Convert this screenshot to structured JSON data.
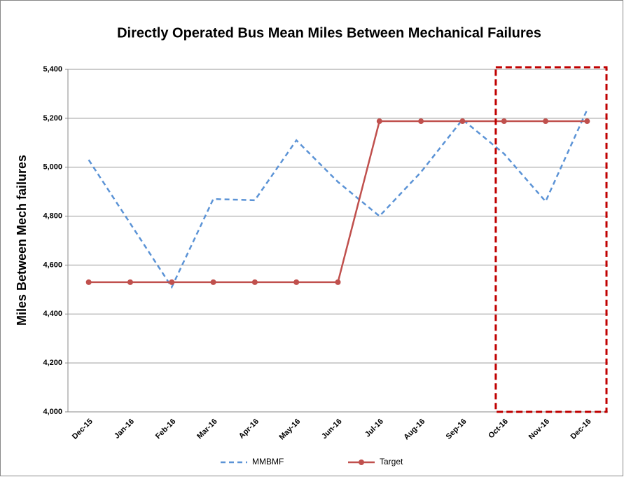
{
  "chart_data": {
    "type": "line",
    "title": "Directly Operated Bus Mean Miles Between Mechanical Failures",
    "y_label": "Miles Between Mech failures",
    "categories": [
      "Dec-15",
      "Jan-16",
      "Feb-16",
      "Mar-16",
      "Apr-16",
      "May-16",
      "Jun-16",
      "Jul-16",
      "Aug-16",
      "Sep-16",
      "Oct-16",
      "Nov-16",
      "Dec-16"
    ],
    "series": [
      {
        "name": "MMBMF",
        "color": "#5b93d6",
        "dashed": true,
        "marker": false,
        "values": [
          5030,
          4770,
          4510,
          4870,
          4865,
          5110,
          4940,
          4800,
          4980,
          5195,
          5055,
          4860,
          5235
        ]
      },
      {
        "name": "Target",
        "color": "#c0504d",
        "dashed": false,
        "marker": true,
        "values": [
          4530,
          4530,
          4530,
          4530,
          4530,
          4530,
          4530,
          5188,
          5188,
          5188,
          5188,
          5188,
          5188
        ]
      }
    ],
    "ylim": [
      4000,
      5400
    ],
    "yticks": [
      {
        "value": 4000,
        "label": "4,000"
      },
      {
        "value": 4200,
        "label": "4,200"
      },
      {
        "value": 4400,
        "label": "4,400"
      },
      {
        "value": 4600,
        "label": "4,600"
      },
      {
        "value": 4800,
        "label": "4,800"
      },
      {
        "value": 5000,
        "label": "5,000"
      },
      {
        "value": 5200,
        "label": "5,200"
      },
      {
        "value": 5400,
        "label": "5,400"
      }
    ],
    "grid": true,
    "legend": "bottom"
  }
}
